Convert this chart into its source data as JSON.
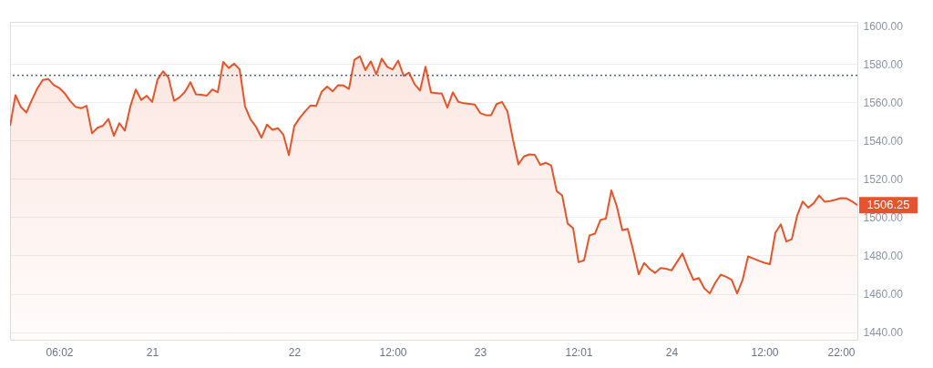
{
  "chart_data": {
    "type": "area",
    "categories": [
      null,
      null,
      null,
      null,
      null,
      null,
      null,
      null,
      null,
      "06:02",
      null,
      null,
      null,
      null,
      null,
      null,
      null,
      null,
      null,
      null,
      null,
      null,
      null,
      null,
      null,
      null,
      "21",
      null,
      null,
      null,
      null,
      null,
      null,
      null,
      null,
      null,
      null,
      null,
      null,
      null,
      null,
      null,
      null,
      null,
      null,
      null,
      null,
      null,
      null,
      null,
      null,
      null,
      "22",
      null,
      null,
      null,
      null,
      null,
      null,
      null,
      null,
      null,
      null,
      null,
      null,
      null,
      null,
      null,
      null,
      null,
      "12:00",
      null,
      null,
      null,
      null,
      null,
      null,
      null,
      null,
      null,
      null,
      null,
      null,
      null,
      null,
      null,
      "23",
      null,
      null,
      null,
      null,
      null,
      null,
      null,
      null,
      null,
      null,
      null,
      null,
      null,
      null,
      null,
      null,
      null,
      "12:01",
      null,
      null,
      null,
      null,
      null,
      null,
      null,
      null,
      null,
      null,
      null,
      null,
      null,
      null,
      null,
      null,
      "24",
      null,
      null,
      null,
      null,
      null,
      null,
      null,
      null,
      null,
      null,
      null,
      null,
      null,
      null,
      null,
      null,
      "12:00",
      null,
      null,
      null,
      null,
      null,
      null,
      null,
      null,
      null,
      null,
      null,
      null,
      null,
      "22:00",
      null,
      null,
      null
    ],
    "series": [
      {
        "color": "#e8542a",
        "values": [
          1547.6,
          1563.7,
          1557.5,
          1554.7,
          1561.3,
          1567.3,
          1571.7,
          1572.2,
          1569.0,
          1567.5,
          1564.7,
          1560.7,
          1557.6,
          1556.9,
          1558.2,
          1543.8,
          1546.7,
          1547.8,
          1551.3,
          1542.5,
          1549.1,
          1545.2,
          1557.8,
          1566.7,
          1561.2,
          1563.4,
          1560.2,
          1572.0,
          1576.2,
          1572.8,
          1560.8,
          1562.6,
          1565.5,
          1570.5,
          1564.2,
          1563.9,
          1563.5,
          1566.7,
          1565.2,
          1581.1,
          1577.9,
          1580.2,
          1577.2,
          1557.8,
          1551.0,
          1547.2,
          1541.5,
          1548.4,
          1545.6,
          1546.5,
          1543.1,
          1532.4,
          1547.6,
          1551.9,
          1555.3,
          1558.4,
          1558.1,
          1565.5,
          1568.2,
          1565.7,
          1568.9,
          1568.8,
          1567.0,
          1582.2,
          1584.0,
          1576.8,
          1581.4,
          1574.6,
          1582.8,
          1578.5,
          1577.1,
          1581.8,
          1573.8,
          1575.5,
          1569.5,
          1566.1,
          1578.6,
          1565.1,
          1564.8,
          1564.5,
          1557.2,
          1565.2,
          1560.3,
          1559.5,
          1559.2,
          1558.8,
          1554.4,
          1553.3,
          1553.3,
          1559.1,
          1560.2,
          1555.1,
          1540.5,
          1527.6,
          1531.7,
          1532.8,
          1532.5,
          1527.3,
          1528.4,
          1527.0,
          1513.6,
          1511.4,
          1496.7,
          1494.3,
          1476.5,
          1477.5,
          1490.5,
          1491.4,
          1498.6,
          1499.3,
          1514.0,
          1505.7,
          1493.2,
          1493.9,
          1482.6,
          1470.1,
          1476.1,
          1473.0,
          1470.9,
          1473.5,
          1473.1,
          1472.2,
          1476.6,
          1481.0,
          1473.7,
          1467.3,
          1468.2,
          1462.9,
          1460.2,
          1465.7,
          1470.0,
          1468.9,
          1467.3,
          1460.2,
          1467.2,
          1479.5,
          1478.4,
          1477.2,
          1476.2,
          1475.5,
          1491.9,
          1496.3,
          1487.3,
          1488.5,
          1501.0,
          1508.2,
          1505.0,
          1507.3,
          1511.3,
          1508.1,
          1508.4,
          1509.1,
          1510.0,
          1509.8,
          1508.3,
          1506.25
        ]
      }
    ],
    "ylim": [
      1436,
      1602
    ],
    "yticks": [
      {
        "value": 1440,
        "label": "1440.00"
      },
      {
        "value": 1460,
        "label": "1460.00"
      },
      {
        "value": 1480,
        "label": "1480.00"
      },
      {
        "value": 1500,
        "label": "1500.00"
      },
      {
        "value": 1520,
        "label": "1520.00"
      },
      {
        "value": 1540,
        "label": "1540.00"
      },
      {
        "value": 1560,
        "label": "1560.00"
      },
      {
        "value": 1580,
        "label": "1580.00"
      },
      {
        "value": 1600,
        "label": "1600.00"
      }
    ],
    "ref_lines": [
      {
        "axis": "y",
        "value": 1574,
        "color": "#5a6478",
        "line_style": "dotted"
      }
    ],
    "annotations": [
      "1506.25"
    ],
    "grid": "y"
  }
}
